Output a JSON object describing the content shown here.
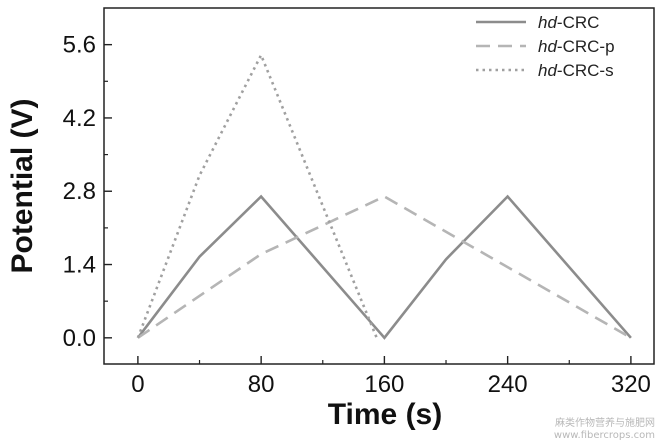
{
  "chart_data": {
    "type": "line",
    "xlabel": "Time (s)",
    "ylabel": "Potential (V)",
    "xlim": [
      -22,
      335
    ],
    "ylim": [
      -0.5,
      6.3
    ],
    "x_ticks": [
      0,
      80,
      160,
      240,
      320
    ],
    "y_ticks": [
      0.0,
      1.4,
      2.8,
      4.2,
      5.6
    ],
    "y_tick_labels": [
      "0.0",
      "1.4",
      "2.8",
      "4.2",
      "5.6"
    ],
    "legend_position": "top-right",
    "series": [
      {
        "name_prefix": "hd",
        "name_suffix": "-CRC",
        "style": "solid",
        "color": "#8c8c8c",
        "points": [
          [
            0,
            0
          ],
          [
            40,
            1.55
          ],
          [
            80,
            2.7
          ],
          [
            160,
            0
          ],
          [
            200,
            1.5
          ],
          [
            240,
            2.7
          ],
          [
            320,
            0
          ]
        ]
      },
      {
        "name_prefix": "hd",
        "name_suffix": "-CRC-p",
        "style": "dashed",
        "color": "#b5b5b5",
        "points": [
          [
            0,
            0
          ],
          [
            80,
            1.6
          ],
          [
            160,
            2.7
          ],
          [
            240,
            1.35
          ],
          [
            320,
            0
          ]
        ]
      },
      {
        "name_prefix": "hd",
        "name_suffix": "-CRC-s",
        "style": "dotted",
        "color": "#a0a0a0",
        "points": [
          [
            0,
            0
          ],
          [
            40,
            3.1
          ],
          [
            80,
            5.4
          ],
          [
            155,
            0
          ]
        ]
      }
    ]
  },
  "watermark": {
    "line1": "麻类作物营养与施肥网",
    "line2": "www.fibercrops.com"
  }
}
